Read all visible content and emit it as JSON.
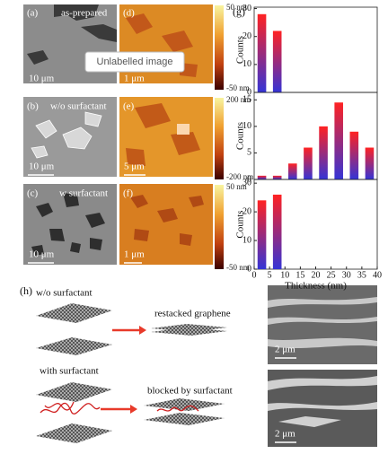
{
  "panels": {
    "a": {
      "label": "(a)",
      "title": "as-prepared",
      "scale": "10 μm"
    },
    "b": {
      "label": "(b)",
      "title": "w/o surfactant",
      "scale": "10 μm"
    },
    "c": {
      "label": "(c)",
      "title": "w surfactant",
      "scale": "10 μm"
    },
    "d": {
      "label": "(d)",
      "scale": "1 μm",
      "cmax": "50 nm",
      "cmin": "-50 nm"
    },
    "e": {
      "label": "(e)",
      "scale": "5 μm",
      "cmax": "200 nm",
      "cmin": "-200 nm"
    },
    "f": {
      "label": "(f)",
      "scale": "1 μm",
      "cmax": "50 nm",
      "cmin": "-50 nm"
    },
    "g": {
      "label": "(g)"
    },
    "h": {
      "label": "(h)",
      "without": "w/o surfactant",
      "restacked": "restacked graphene",
      "with": "with surfactant",
      "blocked": "blocked by surfactant",
      "scale_top": "2 μm",
      "scale_bottom": "2 μm"
    }
  },
  "overlay": "Unlabelled image",
  "chart_data": [
    {
      "type": "histogram",
      "ylabel": "Counts",
      "bins": [
        0,
        5,
        10
      ],
      "values": [
        28,
        22
      ],
      "xlim": [
        0,
        40
      ],
      "ylim": [
        0,
        30.5
      ],
      "yticks": [
        0,
        10,
        20,
        30
      ],
      "gradient": [
        "#ff2222",
        "#3434d6"
      ]
    },
    {
      "type": "histogram",
      "ylabel": "Counts",
      "bins": [
        0,
        5,
        10,
        15,
        20,
        25,
        30,
        35,
        40
      ],
      "values": [
        0.7,
        0.7,
        3,
        6,
        10,
        14.5,
        9,
        6
      ],
      "xlim": [
        0,
        40
      ],
      "ylim": [
        0,
        16.4
      ],
      "yticks": [
        0,
        5,
        10,
        15
      ],
      "gradient": [
        "#ff2222",
        "#3434d6"
      ]
    },
    {
      "type": "histogram",
      "ylabel": "Counts",
      "xlabel": "Thickness (nm)",
      "bins": [
        0,
        5,
        10
      ],
      "values": [
        24,
        26
      ],
      "xlim": [
        0,
        40
      ],
      "ylim": [
        0,
        31.3
      ],
      "yticks": [
        0,
        10,
        20,
        30
      ],
      "xticks": [
        0,
        5,
        10,
        15,
        20,
        25,
        30,
        35,
        40
      ],
      "gradient": [
        "#ff2222",
        "#3434d6"
      ]
    }
  ]
}
